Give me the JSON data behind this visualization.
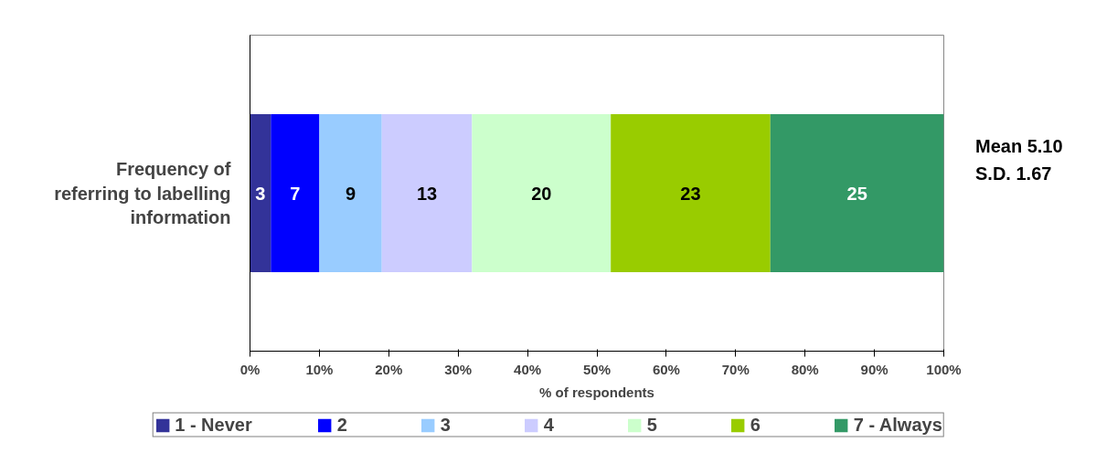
{
  "chart_data": {
    "type": "bar",
    "orientation": "horizontal",
    "stacked": true,
    "categories": [
      "Frequency of\nreferring to labelling\ninformation"
    ],
    "series": [
      {
        "name": "1 - Never",
        "color": "#333399",
        "values": [
          3
        ]
      },
      {
        "name": "2",
        "color": "#0000ff",
        "values": [
          7
        ]
      },
      {
        "name": "3",
        "color": "#99ccff",
        "values": [
          9
        ]
      },
      {
        "name": "4",
        "color": "#ccccff",
        "values": [
          13
        ]
      },
      {
        "name": "5",
        "color": "#ccffcc",
        "values": [
          20
        ]
      },
      {
        "name": "6",
        "color": "#99cc00",
        "values": [
          23
        ]
      },
      {
        "name": "7 - Always",
        "color": "#339966",
        "values": [
          25
        ]
      }
    ],
    "xlim": [
      0,
      100
    ],
    "xticks": [
      {
        "value": 0,
        "label": "0%"
      },
      {
        "value": 10,
        "label": "10%"
      },
      {
        "value": 20,
        "label": "20%"
      },
      {
        "value": 30,
        "label": "30%"
      },
      {
        "value": 40,
        "label": "40%"
      },
      {
        "value": 50,
        "label": "50%"
      },
      {
        "value": 60,
        "label": "60%"
      },
      {
        "value": 70,
        "label": "70%"
      },
      {
        "value": 80,
        "label": "80%"
      },
      {
        "value": 90,
        "label": "90%"
      },
      {
        "value": 100,
        "label": "100%"
      }
    ],
    "xlabel": "% of respondents",
    "data_labels": true,
    "legend": "bottom",
    "annotations": [
      "Mean 5.10",
      "S.D. 1.67"
    ]
  }
}
